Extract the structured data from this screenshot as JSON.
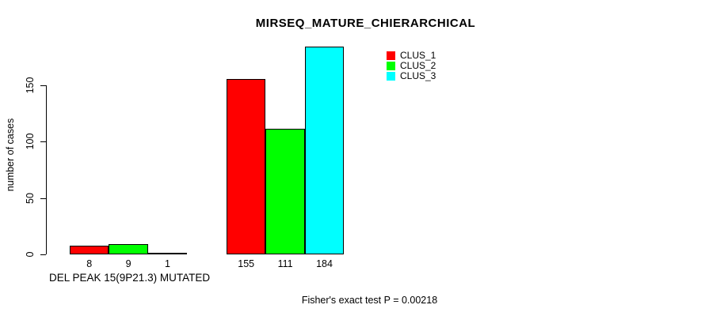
{
  "chart_data": {
    "type": "bar",
    "title": "MIRSEQ_MATURE_CHIERARCHICAL",
    "ylabel": "number of cases",
    "xlabel": "DEL PEAK 15(9P21.3) MUTATED",
    "yticks": [
      0,
      50,
      100,
      150
    ],
    "ylim": [
      0,
      185
    ],
    "grid": false,
    "legend_position": "top-right",
    "series": [
      {
        "name": "CLUS_1",
        "color": "#ff0000",
        "values": [
          8,
          155
        ]
      },
      {
        "name": "CLUS_2",
        "color": "#00ff00",
        "values": [
          9,
          111
        ]
      },
      {
        "name": "CLUS_3",
        "color": "#00ffff",
        "values": [
          1,
          184
        ]
      }
    ],
    "groups": [
      {
        "label": "DEL PEAK 15(9P21.3) MUTATED",
        "bar_value_labels": [
          "8",
          "9",
          "1"
        ]
      },
      {
        "label": "",
        "bar_value_labels": [
          "155",
          "111",
          "184"
        ]
      }
    ],
    "annotation": "Fisher's exact test P = 0.00218",
    "colors": {
      "background": "#ffffff",
      "axis": "#000000",
      "text": "#000000"
    }
  }
}
